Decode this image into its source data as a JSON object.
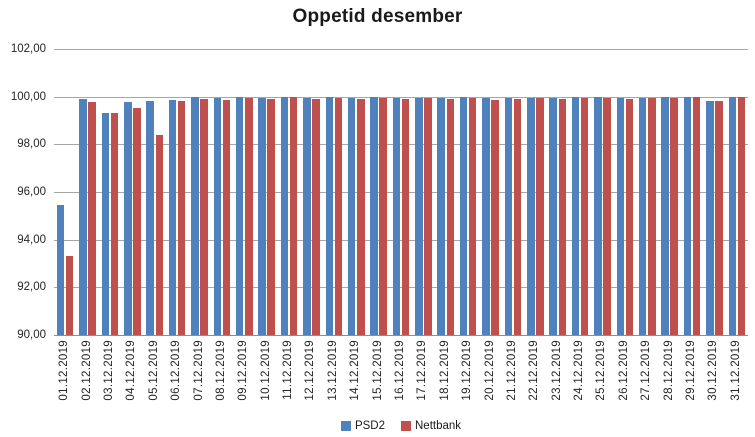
{
  "title": "Oppetid desember",
  "chart_data": {
    "type": "bar",
    "title": "Oppetid desember",
    "xlabel": "",
    "ylabel": "",
    "ylim": [
      90,
      102
    ],
    "grid": "horizontal",
    "legend_position": "bottom",
    "decimal_format": "comma",
    "y_ticks": [
      {
        "value": 102,
        "label": "102,00"
      },
      {
        "value": 100,
        "label": "100,00"
      },
      {
        "value": 98,
        "label": "98,00"
      },
      {
        "value": 96,
        "label": "96,00"
      },
      {
        "value": 94,
        "label": "94,00"
      },
      {
        "value": 92,
        "label": "92,00"
      },
      {
        "value": 90,
        "label": "90,00"
      }
    ],
    "categories": [
      "01.12.2019",
      "02.12.2019",
      "03.12.2019",
      "04.12.2019",
      "05.12.2019",
      "06.12.2019",
      "07.12.2019",
      "08.12.2019",
      "09.12.2019",
      "10.12.2019",
      "11.12.2019",
      "12.12.2019",
      "13.12.2019",
      "14.12.2019",
      "15.12.2019",
      "16.12.2019",
      "17.12.2019",
      "18.12.2019",
      "19.12.2019",
      "20.12.2019",
      "21.12.2019",
      "22.12.2019",
      "23.12.2019",
      "24.12.2019",
      "25.12.2019",
      "26.12.2019",
      "27.12.2019",
      "28.12.2019",
      "29.12.2019",
      "30.12.2019",
      "31.12.2019"
    ],
    "series": [
      {
        "name": "PSD2",
        "color": "#4F81BD",
        "values": [
          95.45,
          99.9,
          99.31,
          99.78,
          99.83,
          99.87,
          99.97,
          99.94,
          99.97,
          99.94,
          99.97,
          99.94,
          99.97,
          99.95,
          99.97,
          99.94,
          99.93,
          99.95,
          99.97,
          99.95,
          99.93,
          99.94,
          99.93,
          99.97,
          99.97,
          99.93,
          99.94,
          99.97,
          99.97,
          99.8,
          99.97
        ]
      },
      {
        "name": "Nettbank",
        "color": "#C0504D",
        "values": [
          93.33,
          99.79,
          99.3,
          99.52,
          98.38,
          99.82,
          99.89,
          99.85,
          99.93,
          99.91,
          99.97,
          99.9,
          99.94,
          99.89,
          99.96,
          99.9,
          99.94,
          99.91,
          99.96,
          99.88,
          99.92,
          99.93,
          99.92,
          99.96,
          99.96,
          99.9,
          99.93,
          99.96,
          99.97,
          99.81,
          99.97
        ]
      }
    ]
  }
}
